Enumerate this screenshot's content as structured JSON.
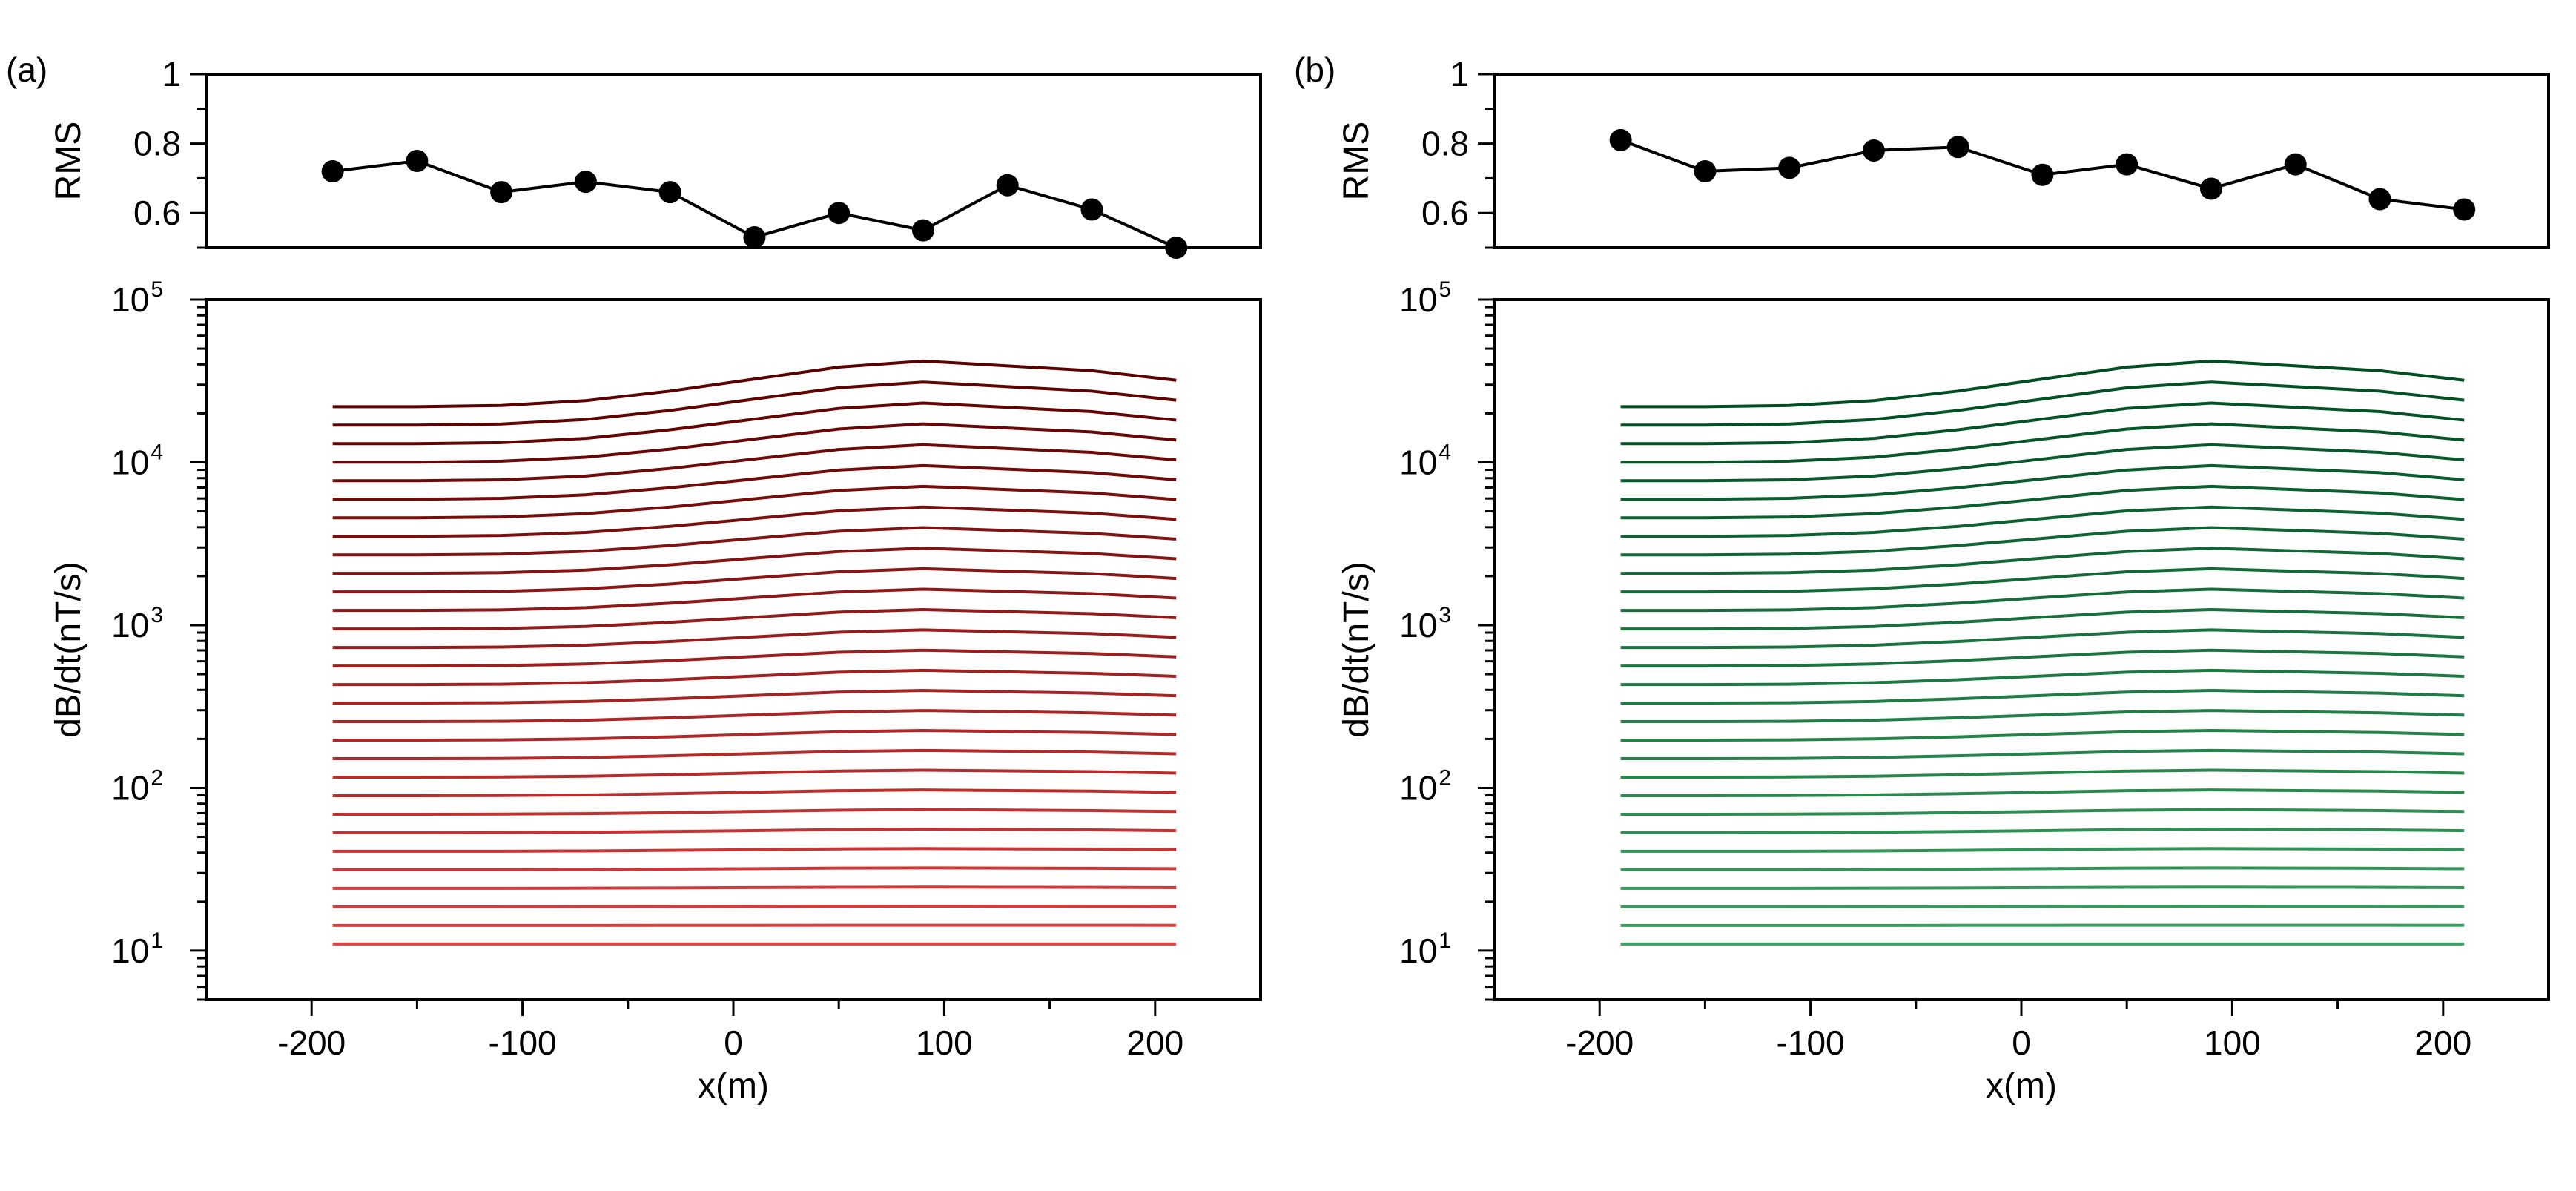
{
  "colors": {
    "panel_a_dark": "#5a0000",
    "panel_a_light": "#e04040",
    "panel_b_dark": "#004d22",
    "panel_b_light": "#3aa060",
    "markers": "#000000"
  },
  "chart_data": [
    {
      "type": "line",
      "panel_label": "(a)",
      "rms": {
        "ylabel": "RMS",
        "ylim": [
          0.5,
          1.0
        ],
        "yticks": [
          0.6,
          0.8,
          1.0
        ],
        "ytick_labels": [
          "0.6",
          "0.8",
          "1"
        ],
        "x": [
          -190,
          -150,
          -110,
          -70,
          -30,
          10,
          50,
          90,
          130,
          170,
          210
        ],
        "values": [
          0.72,
          0.75,
          0.66,
          0.69,
          0.66,
          0.53,
          0.6,
          0.55,
          0.68,
          0.61,
          0.5
        ]
      },
      "curves": {
        "type": "line",
        "ylabel": "dB/dt(nT/s)",
        "xlabel": "x(m)",
        "yscale": "log",
        "ylim": [
          5,
          100000
        ],
        "xlim": [
          -250,
          250
        ],
        "xticks": [
          -200,
          -100,
          0,
          100,
          200
        ],
        "xtick_labels": [
          "-200",
          "-100",
          "0",
          "100",
          "200"
        ],
        "ytick_labels": [
          {
            "base": "10",
            "exp": "1",
            "value": 10
          },
          {
            "base": "10",
            "exp": "2",
            "value": 100
          },
          {
            "base": "10",
            "exp": "3",
            "value": 1000
          },
          {
            "base": "10",
            "exp": "4",
            "value": 10000
          },
          {
            "base": "10",
            "exp": "5",
            "value": 100000
          }
        ],
        "x": [
          -190,
          -150,
          -110,
          -70,
          -30,
          10,
          50,
          90,
          130,
          170,
          210
        ],
        "n_curves": 30,
        "base_min": 11,
        "base_max": 22000,
        "anomaly_shape": [
          0.0,
          0.0,
          0.01,
          0.05,
          0.13,
          0.23,
          0.33,
          0.38,
          0.34,
          0.3,
          0.22
        ],
        "anomaly_max_log10": 0.28
      }
    },
    {
      "type": "line",
      "panel_label": "(b)",
      "rms": {
        "ylabel": "RMS",
        "ylim": [
          0.5,
          1.0
        ],
        "yticks": [
          0.6,
          0.8,
          1.0
        ],
        "ytick_labels": [
          "0.6",
          "0.8",
          "1"
        ],
        "x": [
          -190,
          -150,
          -110,
          -70,
          -30,
          10,
          50,
          90,
          130,
          170,
          210
        ],
        "values": [
          0.81,
          0.72,
          0.73,
          0.78,
          0.79,
          0.71,
          0.74,
          0.67,
          0.74,
          0.64,
          0.61
        ]
      },
      "curves": {
        "type": "line",
        "ylabel": "dB/dt(nT/s)",
        "xlabel": "x(m)",
        "yscale": "log",
        "ylim": [
          5,
          100000
        ],
        "xlim": [
          -250,
          250
        ],
        "xticks": [
          -200,
          -100,
          0,
          100,
          200
        ],
        "xtick_labels": [
          "-200",
          "-100",
          "0",
          "100",
          "200"
        ],
        "ytick_labels": [
          {
            "base": "10",
            "exp": "1",
            "value": 10
          },
          {
            "base": "10",
            "exp": "2",
            "value": 100
          },
          {
            "base": "10",
            "exp": "3",
            "value": 1000
          },
          {
            "base": "10",
            "exp": "4",
            "value": 10000
          },
          {
            "base": "10",
            "exp": "5",
            "value": 100000
          }
        ],
        "x": [
          -190,
          -150,
          -110,
          -70,
          -30,
          10,
          50,
          90,
          130,
          170,
          210
        ],
        "n_curves": 30,
        "base_min": 11,
        "base_max": 22000,
        "anomaly_shape": [
          0.0,
          0.0,
          0.01,
          0.05,
          0.13,
          0.23,
          0.33,
          0.38,
          0.34,
          0.3,
          0.22
        ],
        "anomaly_max_log10": 0.28
      }
    }
  ]
}
